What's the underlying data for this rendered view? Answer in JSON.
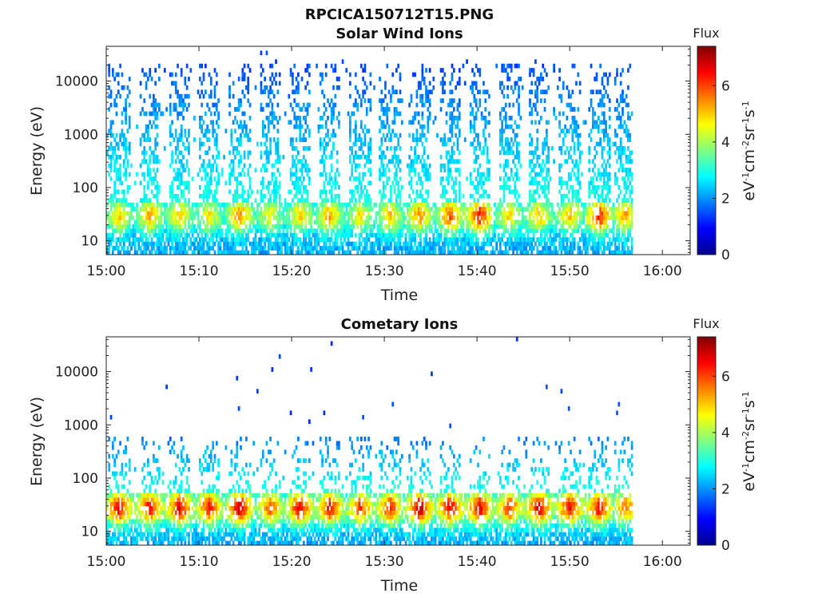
{
  "figure_title": "RPCICA150712T15.PNG",
  "colorbar": {
    "title": "Flux",
    "ticks": [
      "0",
      "2",
      "4",
      "6"
    ],
    "range": [
      0,
      7.4
    ],
    "colormap": "jet",
    "unit": "eV-1cm-2sr-1s-1"
  },
  "chart_data": [
    {
      "type": "heatmap",
      "title": "Solar Wind Ions",
      "xlabel": "Time",
      "ylabel": "Energy (eV)",
      "x_ticks": [
        "15:00",
        "15:10",
        "15:20",
        "15:30",
        "15:40",
        "15:50",
        "16:00"
      ],
      "x_range_min": [
        0,
        63
      ],
      "y_ticks": [
        "10",
        "100",
        "1000",
        "10000"
      ],
      "y_range_eV": [
        5.5,
        45000
      ],
      "y_scale": "log",
      "data_end_min": 56.8,
      "scan_centres_min": [
        1.3,
        4.6,
        7.8,
        11.0,
        14.3,
        17.6,
        20.8,
        24.0,
        27.3,
        30.5,
        33.7,
        37.0,
        40.2,
        43.4,
        46.6,
        49.9,
        53.1,
        55.9
      ],
      "peak_energy_eV": 30,
      "peak_flux": [
        5.0,
        5.4,
        5.0,
        4.8,
        5.6,
        4.6,
        5.0,
        5.4,
        4.8,
        5.2,
        5.6,
        6.0,
        6.6,
        5.0,
        5.2,
        5.2,
        6.4,
        5.4
      ],
      "high_energy_max_eV": 20000,
      "high_energy_flux": 1.5
    },
    {
      "type": "heatmap",
      "title": "Cometary Ions",
      "xlabel": "Time",
      "ylabel": "Energy (eV)",
      "x_ticks": [
        "15:00",
        "15:10",
        "15:20",
        "15:30",
        "15:40",
        "15:50",
        "16:00"
      ],
      "x_range_min": [
        0,
        63
      ],
      "y_ticks": [
        "10",
        "100",
        "1000",
        "10000"
      ],
      "y_range_eV": [
        5.5,
        45000
      ],
      "y_scale": "log",
      "data_end_min": 56.8,
      "scan_centres_min": [
        1.3,
        4.6,
        7.8,
        11.0,
        14.3,
        17.6,
        20.8,
        24.0,
        27.3,
        30.5,
        33.7,
        37.0,
        40.2,
        43.4,
        46.6,
        49.9,
        53.1,
        55.9
      ],
      "peak_energy_eV": 28,
      "peak_flux": [
        6.8,
        6.6,
        6.8,
        6.4,
        7.0,
        6.0,
        6.8,
        6.6,
        6.2,
        6.4,
        7.0,
        6.8,
        6.8,
        6.2,
        6.8,
        6.6,
        6.6,
        5.8
      ],
      "high_energy_max_eV": 600,
      "high_energy_flux": 1.8
    }
  ]
}
